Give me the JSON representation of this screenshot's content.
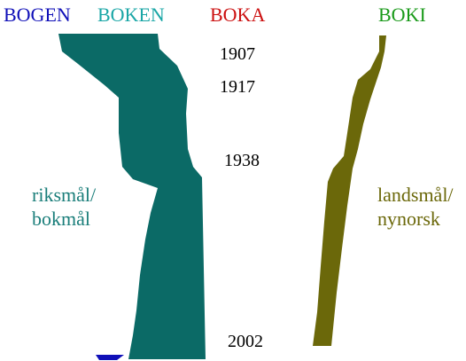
{
  "headers": [
    {
      "text": "BOGEN",
      "color": "#1010b8"
    },
    {
      "text": "BOKEN",
      "color": "#1aa6a6"
    },
    {
      "text": "BOKA",
      "color": "#cc1111"
    },
    {
      "text": "BOKI",
      "color": "#1a9a1a"
    }
  ],
  "years": [
    "1907",
    "1917",
    "1938",
    "2002"
  ],
  "labels": {
    "riksmal_line1": "riksmål/",
    "riksmal_line2": "bokmål",
    "landsmal_line1": "landsmål/",
    "landsmal_line2": "nynorsk"
  },
  "colors": {
    "riksmal_band": "#0b6a66",
    "landsmal_band": "#6b680a",
    "bogen_band": "#1010b8",
    "riksmal_text": "#1a7e7a",
    "landsmal_text": "#6b680a"
  }
}
